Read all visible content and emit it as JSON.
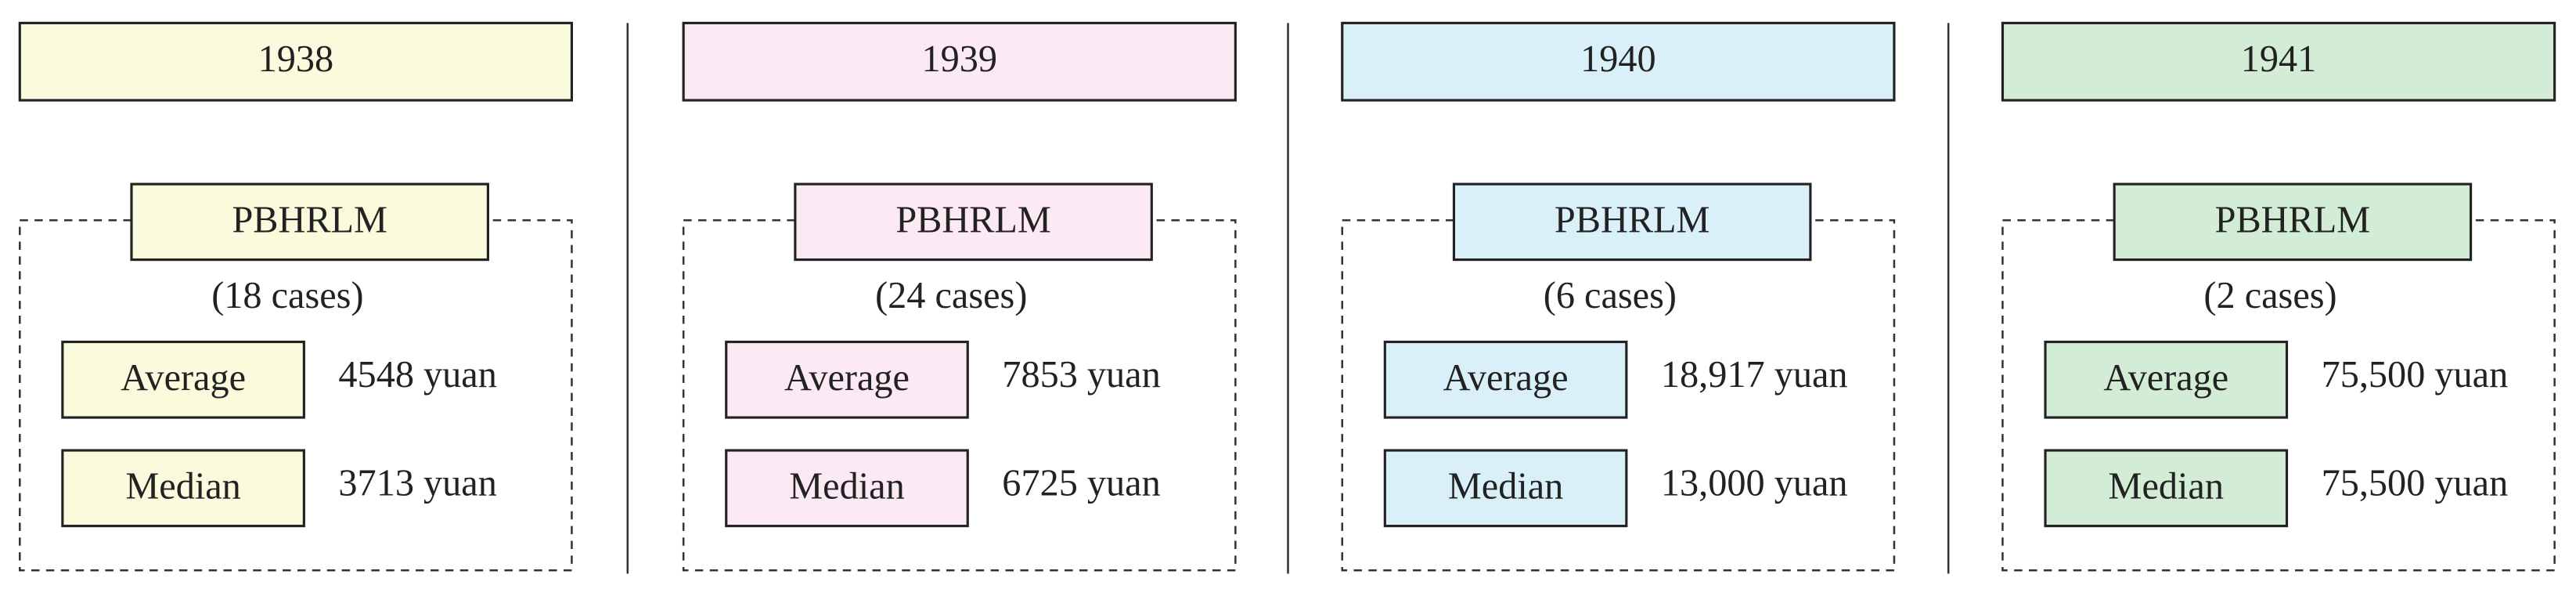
{
  "panels": [
    {
      "year": "1938",
      "color": "#fafadc",
      "method": "PBHRLM",
      "cases": "(18 cases)",
      "average": {
        "label": "Average",
        "value": "4548 yuan"
      },
      "median": {
        "label": "Median",
        "value": "3713 yuan"
      }
    },
    {
      "year": "1939",
      "color": "#fbeaf3",
      "method": "PBHRLM",
      "cases": "(24 cases)",
      "average": {
        "label": "Average",
        "value": "7853 yuan"
      },
      "median": {
        "label": "Median",
        "value": "6725 yuan"
      }
    },
    {
      "year": "1940",
      "color": "#daf0f9",
      "method": "PBHRLM",
      "cases": "(6 cases)",
      "average": {
        "label": "Average",
        "value": "18,917 yuan"
      },
      "median": {
        "label": "Median",
        "value": "13,000 yuan"
      }
    },
    {
      "year": "1941",
      "color": "#d3ecd6",
      "method": "PBHRLM",
      "cases": "(2 cases)",
      "average": {
        "label": "Average",
        "value": "75,500 yuan"
      },
      "median": {
        "label": "Median",
        "value": "75,500 yuan"
      }
    }
  ]
}
